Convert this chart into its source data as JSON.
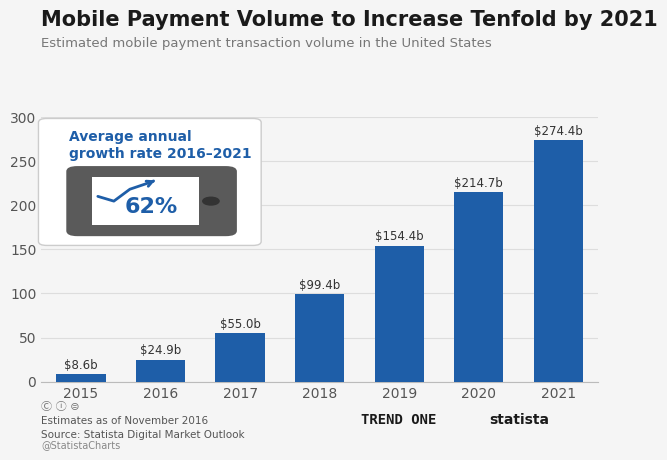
{
  "title": "Mobile Payment Volume to Increase Tenfold by 2021",
  "subtitle": "Estimated mobile payment transaction volume in the United States",
  "years": [
    "2015",
    "2016",
    "2017",
    "2018",
    "2019",
    "2020",
    "2021"
  ],
  "values": [
    8.6,
    24.9,
    55.0,
    99.4,
    154.4,
    214.7,
    274.4
  ],
  "labels": [
    "$8.6b",
    "$24.9b",
    "$55.0b",
    "$99.4b",
    "$154.4b",
    "$214.7b",
    "$274.4b"
  ],
  "bar_color": "#1e5ea8",
  "ylim": [
    0,
    300
  ],
  "yticks": [
    0,
    50,
    100,
    150,
    200,
    250,
    300
  ],
  "bg_color": "#f5f5f5",
  "annotation_text": "Average annual\ngrowth rate 2016–2021",
  "annotation_pct": "62%",
  "footer_left1": "Estimates as of November 2016",
  "footer_left2": "Source: Statista Digital Market Outlook",
  "footer_handle": "@StatistaCharts",
  "title_fontsize": 15,
  "subtitle_fontsize": 9.5,
  "label_fontsize": 8.5,
  "tick_fontsize": 10,
  "grid_color": "#dddddd",
  "phone_color": "#5a5a5a",
  "screen_color": "#ffffff",
  "annotation_box_bg": "#ffffff",
  "text_color_blue": "#1e5ea8",
  "ann_text_fontsize": 10
}
